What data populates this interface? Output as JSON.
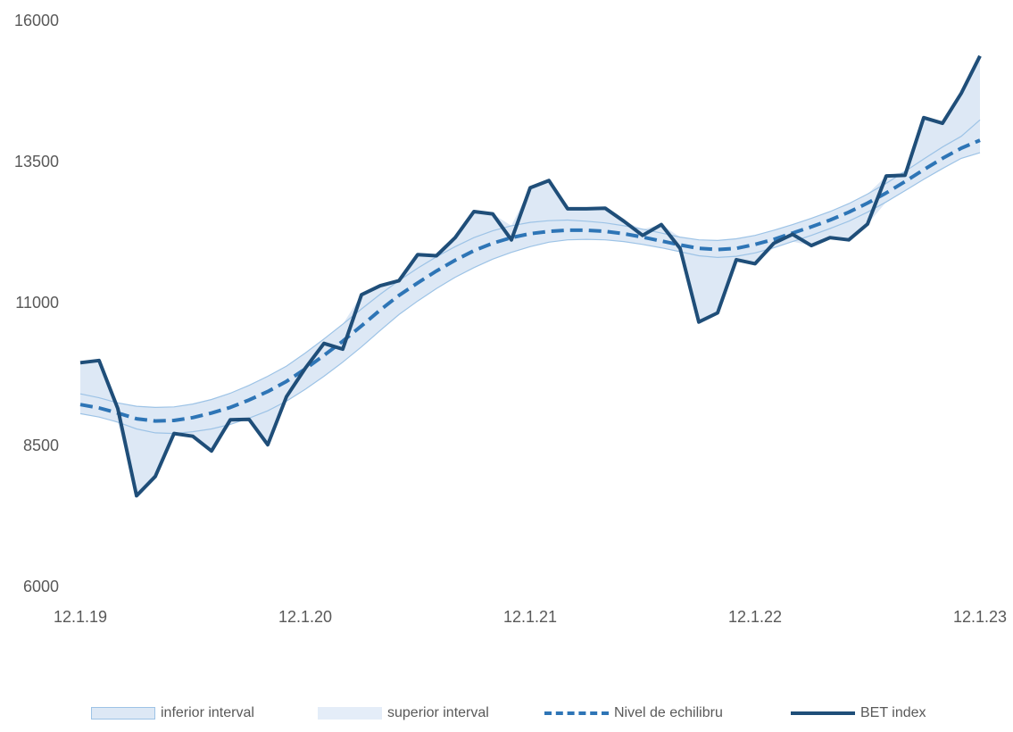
{
  "chart_data": {
    "type": "line",
    "x_ticks": [
      "12.1.19",
      "12.1.20",
      "12.1.21",
      "12.1.22",
      "12.1.23"
    ],
    "y_ticks": [
      "6000",
      "8500",
      "11000",
      "13500",
      "16000"
    ],
    "ylim": [
      6000,
      16000
    ],
    "x_count": 49,
    "grid": false,
    "legend_position": "bottom",
    "colors": {
      "band_fill": "#dde8f5",
      "band_edge": "#9dc3e6",
      "equilibrium": "#2e75b6",
      "index": "#1f4e79"
    },
    "series": [
      {
        "name": "inferior interval",
        "kind": "band-lower",
        "values": [
          9070,
          9010,
          8920,
          8800,
          8730,
          8720,
          8750,
          8800,
          8880,
          8990,
          9120,
          9290,
          9500,
          9730,
          9980,
          10250,
          10540,
          10820,
          11060,
          11280,
          11480,
          11650,
          11800,
          11920,
          12020,
          12100,
          12140,
          12150,
          12140,
          12110,
          12060,
          12000,
          11930,
          11860,
          11830,
          11850,
          11910,
          12000,
          12110,
          12220,
          12340,
          12470,
          12630,
          12810,
          13010,
          13210,
          13400,
          13580,
          13680
        ]
      },
      {
        "name": "superior interval",
        "kind": "band-upper",
        "values": [
          9420,
          9350,
          9260,
          9200,
          9180,
          9190,
          9240,
          9320,
          9430,
          9570,
          9730,
          9910,
          10140,
          10390,
          10650,
          10920,
          11180,
          11420,
          11640,
          11840,
          12020,
          12180,
          12300,
          12390,
          12450,
          12480,
          12490,
          12470,
          12440,
          12390,
          12330,
          12260,
          12190,
          12140,
          12130,
          12160,
          12220,
          12310,
          12410,
          12520,
          12640,
          12780,
          12950,
          13140,
          13350,
          13570,
          13780,
          13970,
          14260
        ]
      },
      {
        "name": "Nivel de echilibru",
        "kind": "dashed",
        "values": [
          9230,
          9170,
          9080,
          8980,
          8940,
          8950,
          9000,
          9080,
          9180,
          9310,
          9460,
          9640,
          9860,
          10100,
          10350,
          10620,
          10900,
          11160,
          11380,
          11590,
          11780,
          11950,
          12080,
          12180,
          12250,
          12290,
          12310,
          12310,
          12290,
          12250,
          12190,
          12120,
          12050,
          11990,
          11970,
          11990,
          12060,
          12150,
          12260,
          12370,
          12490,
          12630,
          12790,
          12970,
          13170,
          13380,
          13580,
          13760,
          13900
        ]
      },
      {
        "name": "BET index",
        "kind": "solid",
        "values": [
          9970,
          10010,
          9160,
          7620,
          7960,
          8720,
          8670,
          8410,
          8960,
          8970,
          8520,
          9370,
          9870,
          10310,
          10210,
          11170,
          11330,
          11420,
          11880,
          11860,
          12180,
          12640,
          12600,
          12140,
          13060,
          13190,
          12690,
          12690,
          12700,
          12470,
          12220,
          12410,
          11990,
          10690,
          10850,
          11790,
          11720,
          12080,
          12240,
          12040,
          12180,
          12140,
          12420,
          13270,
          13280,
          14300,
          14200,
          14730,
          15390
        ]
      }
    ]
  }
}
